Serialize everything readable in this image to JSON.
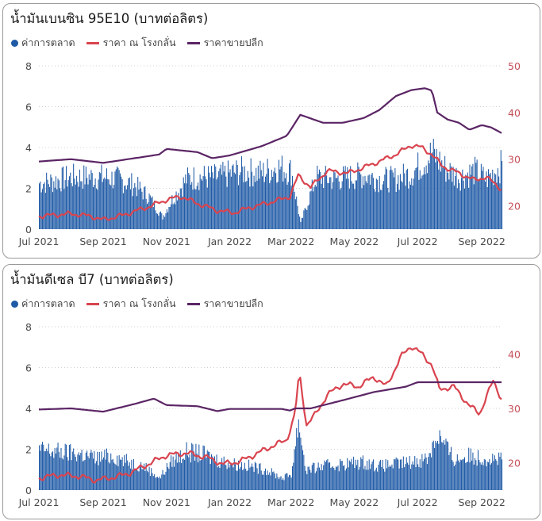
{
  "colors": {
    "market": "#1f5aa6",
    "refinery": "#d9444f",
    "retail": "#5b2565",
    "axis_left": "#4a4a4a",
    "axis_right": "#c5505a",
    "grid": "#d0d0d0"
  },
  "chart_data": [
    {
      "type": "bar+line",
      "title": "น้ำมันเบนซิน 95E10 (บาทต่อลิตร)",
      "legend": [
        "ค่าการตลาด",
        "ราคา ณ โรงกลั่น",
        "ราคาขายปลีก"
      ],
      "legend_position": "top-left",
      "x_range": [
        "2021-07-01",
        "2022-09-20"
      ],
      "x_ticks": [
        "Jul 2021",
        "Sep 2021",
        "Nov 2021",
        "Jan 2022",
        "Mar 2022",
        "May 2022",
        "Jul 2022",
        "Sep 2022"
      ],
      "y_left": {
        "range": [
          0,
          8
        ],
        "ticks": [
          "0",
          "2",
          "4",
          "6",
          "8"
        ]
      },
      "y_right": {
        "range": [
          15,
          50
        ],
        "ticks": [
          "20",
          "30",
          "40",
          "50"
        ]
      },
      "grid": "horizontal dotted",
      "series": [
        {
          "name": "ค่าการตลาด",
          "type": "bar",
          "axis": "left",
          "points": [
            [
              "2021-07-01",
              2.3
            ],
            [
              "2021-07-15",
              2.4
            ],
            [
              "2021-08-01",
              2.6
            ],
            [
              "2021-08-15",
              2.6
            ],
            [
              "2021-09-01",
              2.6
            ],
            [
              "2021-09-15",
              2.5
            ],
            [
              "2021-10-01",
              2.2
            ],
            [
              "2021-10-15",
              1.6
            ],
            [
              "2021-10-28",
              0.6
            ],
            [
              "2021-11-05",
              1.4
            ],
            [
              "2021-11-20",
              2.5
            ],
            [
              "2021-12-01",
              2.6
            ],
            [
              "2021-12-20",
              2.6
            ],
            [
              "2022-01-10",
              2.9
            ],
            [
              "2022-02-01",
              2.8
            ],
            [
              "2022-02-15",
              3.1
            ],
            [
              "2022-03-01",
              2.9
            ],
            [
              "2022-03-10",
              0.3
            ],
            [
              "2022-03-25",
              2.6
            ],
            [
              "2022-04-10",
              2.5
            ],
            [
              "2022-04-25",
              2.6
            ],
            [
              "2022-05-10",
              2.7
            ],
            [
              "2022-05-25",
              2.5
            ],
            [
              "2022-06-10",
              2.5
            ],
            [
              "2022-06-25",
              2.8
            ],
            [
              "2022-07-05",
              3.3
            ],
            [
              "2022-07-15",
              3.8
            ],
            [
              "2022-07-28",
              3.0
            ],
            [
              "2022-08-10",
              2.6
            ],
            [
              "2022-08-25",
              2.9
            ],
            [
              "2022-09-05",
              2.5
            ],
            [
              "2022-09-20",
              3.2
            ]
          ]
        },
        {
          "name": "ราคา ณ โรงกลั่น",
          "type": "line",
          "axis": "right",
          "points": [
            [
              "2021-07-01",
              17.8
            ],
            [
              "2021-08-01",
              18.3
            ],
            [
              "2021-08-20",
              17.8
            ],
            [
              "2021-09-01",
              17.0
            ],
            [
              "2021-09-20",
              18.0
            ],
            [
              "2021-10-15",
              19.8
            ],
            [
              "2021-11-01",
              21.3
            ],
            [
              "2021-11-15",
              22.0
            ],
            [
              "2021-12-01",
              20.5
            ],
            [
              "2021-12-20",
              19.0
            ],
            [
              "2022-01-05",
              18.5
            ],
            [
              "2022-01-20",
              19.6
            ],
            [
              "2022-02-10",
              20.8
            ],
            [
              "2022-02-28",
              22.0
            ],
            [
              "2022-03-08",
              26.5
            ],
            [
              "2022-03-20",
              24.0
            ],
            [
              "2022-04-05",
              27.5
            ],
            [
              "2022-04-25",
              27.0
            ],
            [
              "2022-05-10",
              28.2
            ],
            [
              "2022-05-25",
              29.5
            ],
            [
              "2022-06-10",
              31.0
            ],
            [
              "2022-06-25",
              33.0
            ],
            [
              "2022-07-05",
              32.5
            ],
            [
              "2022-07-15",
              31.0
            ],
            [
              "2022-07-25",
              28.5
            ],
            [
              "2022-08-10",
              27.0
            ],
            [
              "2022-08-25",
              25.5
            ],
            [
              "2022-09-05",
              26.2
            ],
            [
              "2022-09-20",
              23.6
            ]
          ]
        },
        {
          "name": "ราคาขายปลีก",
          "type": "line",
          "axis": "right",
          "points": [
            [
              "2021-07-01",
              29.5
            ],
            [
              "2021-08-01",
              30.0
            ],
            [
              "2021-09-01",
              29.2
            ],
            [
              "2021-10-01",
              30.2
            ],
            [
              "2021-10-25",
              31.0
            ],
            [
              "2021-11-01",
              32.2
            ],
            [
              "2021-12-01",
              31.5
            ],
            [
              "2021-12-15",
              30.2
            ],
            [
              "2022-01-01",
              30.8
            ],
            [
              "2022-02-01",
              32.8
            ],
            [
              "2022-02-25",
              35.0
            ],
            [
              "2022-03-10",
              39.5
            ],
            [
              "2022-04-01",
              37.8
            ],
            [
              "2022-04-20",
              37.8
            ],
            [
              "2022-05-10",
              38.8
            ],
            [
              "2022-05-25",
              40.5
            ],
            [
              "2022-06-10",
              43.5
            ],
            [
              "2022-06-25",
              44.8
            ],
            [
              "2022-07-08",
              45.2
            ],
            [
              "2022-07-15",
              44.7
            ],
            [
              "2022-07-20",
              40.0
            ],
            [
              "2022-07-30",
              38.5
            ],
            [
              "2022-08-10",
              37.8
            ],
            [
              "2022-08-20",
              36.3
            ],
            [
              "2022-09-01",
              37.3
            ],
            [
              "2022-09-10",
              36.8
            ],
            [
              "2022-09-20",
              35.6
            ]
          ]
        }
      ]
    },
    {
      "type": "bar+line",
      "title": "น้ำมันดีเซล บี7 (บาทต่อลิตร)",
      "legend": [
        "ค่าการตลาด",
        "ราคา ณ โรงกลั่น",
        "ราคาขายปลีก"
      ],
      "legend_position": "top-left",
      "x_range": [
        "2021-07-01",
        "2022-09-20"
      ],
      "x_ticks": [
        "Jul 2021",
        "Sep 2021",
        "Nov 2021",
        "Jan 2022",
        "Mar 2022",
        "May 2022",
        "Jul 2022",
        "Sep 2022"
      ],
      "y_left": {
        "range": [
          0,
          8
        ],
        "ticks": [
          "0",
          "2",
          "4",
          "6",
          "8"
        ]
      },
      "y_right": {
        "range": [
          15,
          45
        ],
        "ticks": [
          "20",
          "30",
          "40"
        ]
      },
      "grid": "horizontal dotted",
      "series": [
        {
          "name": "ค่าการตลาด",
          "type": "bar",
          "axis": "left",
          "points": [
            [
              "2021-07-01",
              2.0
            ],
            [
              "2021-07-20",
              1.9
            ],
            [
              "2021-08-10",
              1.8
            ],
            [
              "2021-08-25",
              1.6
            ],
            [
              "2021-09-10",
              1.7
            ],
            [
              "2021-09-25",
              1.4
            ],
            [
              "2021-10-10",
              1.2
            ],
            [
              "2021-10-25",
              0.6
            ],
            [
              "2021-11-05",
              1.4
            ],
            [
              "2021-11-20",
              1.9
            ],
            [
              "2021-12-05",
              1.8
            ],
            [
              "2021-12-20",
              1.5
            ],
            [
              "2022-01-05",
              1.3
            ],
            [
              "2022-01-20",
              1.2
            ],
            [
              "2022-02-05",
              1.0
            ],
            [
              "2022-02-20",
              0.6
            ],
            [
              "2022-03-01",
              0.8
            ],
            [
              "2022-03-08",
              3.5
            ],
            [
              "2022-03-15",
              1.0
            ],
            [
              "2022-04-01",
              1.2
            ],
            [
              "2022-04-20",
              1.3
            ],
            [
              "2022-05-10",
              1.4
            ],
            [
              "2022-05-25",
              1.2
            ],
            [
              "2022-06-10",
              1.3
            ],
            [
              "2022-06-25",
              1.4
            ],
            [
              "2022-07-10",
              1.6
            ],
            [
              "2022-07-20",
              2.8
            ],
            [
              "2022-08-05",
              1.5
            ],
            [
              "2022-08-20",
              1.7
            ],
            [
              "2022-09-05",
              1.6
            ],
            [
              "2022-09-20",
              1.5
            ]
          ]
        },
        {
          "name": "ราคา ณ โรงกลั่น",
          "type": "line",
          "axis": "right",
          "points": [
            [
              "2021-07-01",
              17.2
            ],
            [
              "2021-07-20",
              17.8
            ],
            [
              "2021-08-10",
              17.5
            ],
            [
              "2021-08-25",
              16.8
            ],
            [
              "2021-09-10",
              17.3
            ],
            [
              "2021-09-25",
              18.0
            ],
            [
              "2021-10-15",
              19.8
            ],
            [
              "2021-11-01",
              21.4
            ],
            [
              "2021-11-20",
              21.8
            ],
            [
              "2021-12-10",
              21.0
            ],
            [
              "2021-12-25",
              19.8
            ],
            [
              "2022-01-10",
              20.2
            ],
            [
              "2022-01-25",
              21.5
            ],
            [
              "2022-02-10",
              23.0
            ],
            [
              "2022-02-25",
              24.2
            ],
            [
              "2022-03-05",
              29.0
            ],
            [
              "2022-03-09",
              36.7
            ],
            [
              "2022-03-16",
              27.0
            ],
            [
              "2022-03-25",
              29.0
            ],
            [
              "2022-04-05",
              32.5
            ],
            [
              "2022-04-20",
              34.5
            ],
            [
              "2022-05-05",
              34.0
            ],
            [
              "2022-05-20",
              35.8
            ],
            [
              "2022-06-01",
              34.0
            ],
            [
              "2022-06-15",
              39.5
            ],
            [
              "2022-06-25",
              41.5
            ],
            [
              "2022-07-05",
              40.0
            ],
            [
              "2022-07-15",
              38.0
            ],
            [
              "2022-07-22",
              33.5
            ],
            [
              "2022-08-05",
              34.0
            ],
            [
              "2022-08-20",
              30.5
            ],
            [
              "2022-08-30",
              29.0
            ],
            [
              "2022-09-05",
              32.0
            ],
            [
              "2022-09-12",
              35.0
            ],
            [
              "2022-09-20",
              31.8
            ]
          ]
        },
        {
          "name": "ราคาขายปลีก",
          "type": "line",
          "axis": "right",
          "points": [
            [
              "2021-07-01",
              29.8
            ],
            [
              "2021-08-01",
              30.0
            ],
            [
              "2021-09-01",
              29.4
            ],
            [
              "2021-10-01",
              30.8
            ],
            [
              "2021-10-20",
              31.8
            ],
            [
              "2021-11-01",
              30.6
            ],
            [
              "2021-12-01",
              30.4
            ],
            [
              "2021-12-20",
              29.5
            ],
            [
              "2022-01-01",
              29.9
            ],
            [
              "2022-02-01",
              29.9
            ],
            [
              "2022-02-20",
              29.9
            ],
            [
              "2022-02-28",
              29.6
            ],
            [
              "2022-03-05",
              30.0
            ],
            [
              "2022-03-20",
              30.0
            ],
            [
              "2022-04-20",
              31.5
            ],
            [
              "2022-05-20",
              33.0
            ],
            [
              "2022-06-20",
              34.0
            ],
            [
              "2022-07-01",
              34.8
            ],
            [
              "2022-07-20",
              34.8
            ],
            [
              "2022-09-20",
              34.8
            ]
          ]
        }
      ]
    }
  ]
}
